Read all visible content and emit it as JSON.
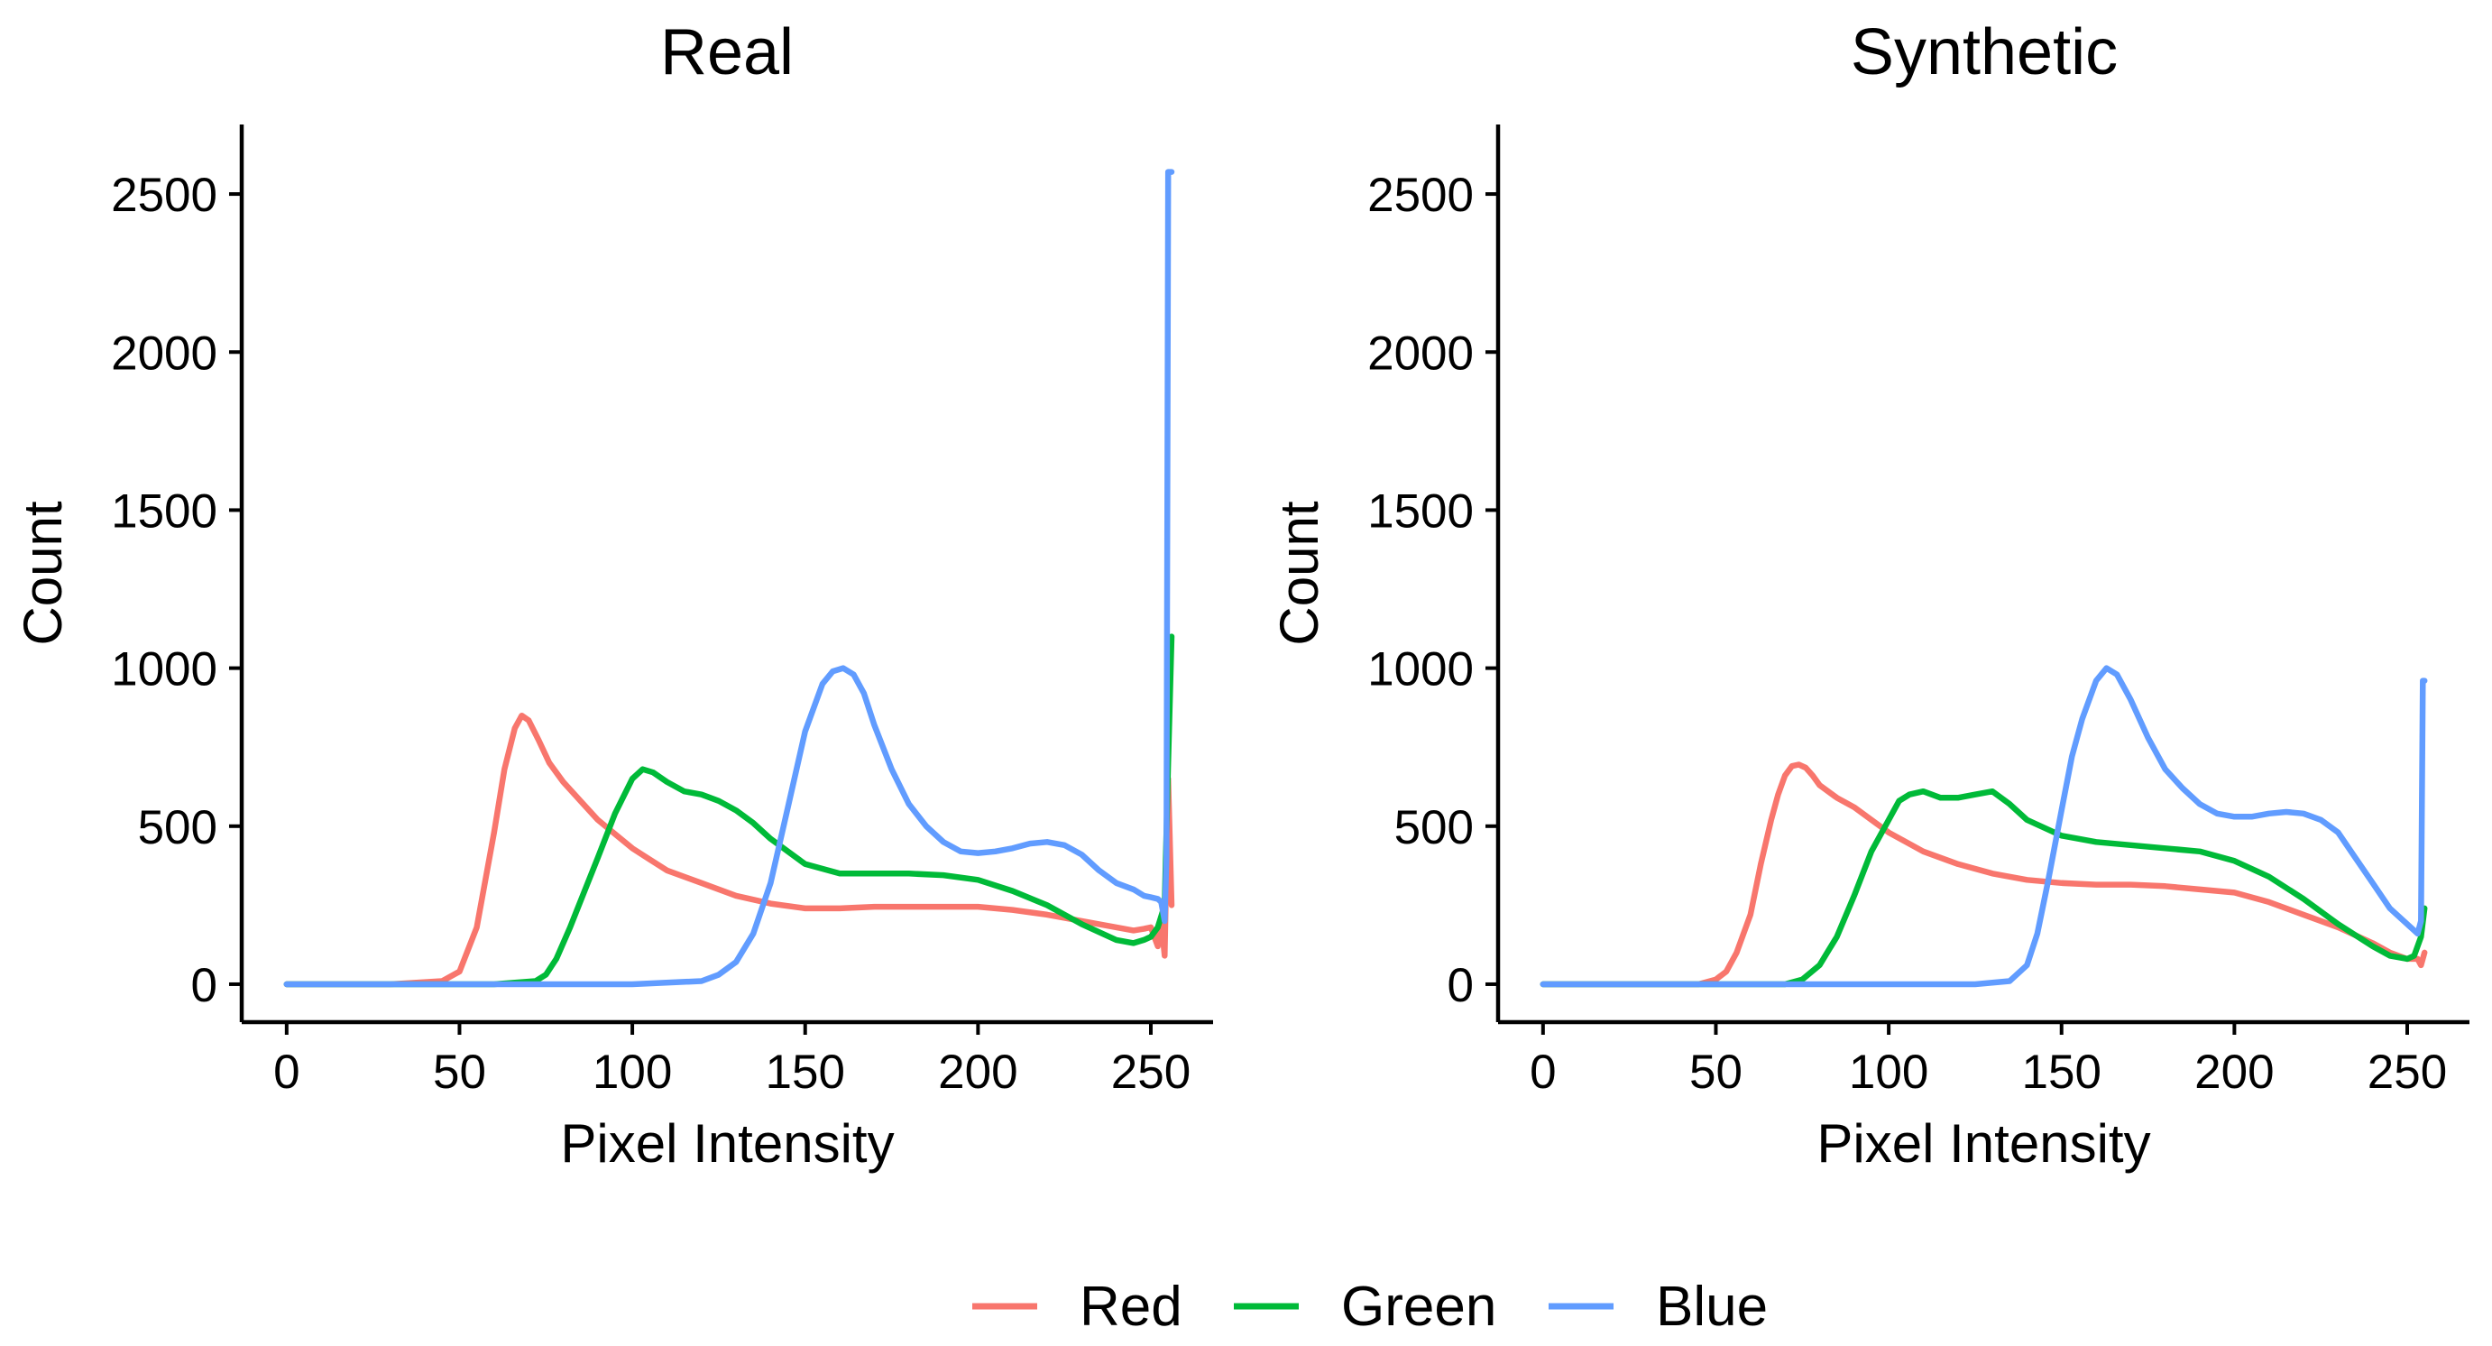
{
  "colors": {
    "red": "#F8766D",
    "green": "#00BA38",
    "blue": "#619CFF"
  },
  "legend": [
    {
      "key": "red",
      "label": "Red"
    },
    {
      "key": "green",
      "label": "Green"
    },
    {
      "key": "blue",
      "label": "Blue"
    }
  ],
  "chart_data": [
    {
      "type": "line",
      "title": "Real",
      "xlabel": "Pixel Intensity",
      "ylabel": "Count",
      "xlim": [
        -13,
        268
      ],
      "ylim": [
        -120,
        2720
      ],
      "xticks": [
        0,
        50,
        100,
        150,
        200,
        250
      ],
      "yticks": [
        0,
        500,
        1000,
        1500,
        2000,
        2500
      ],
      "grid": false,
      "legend_position": "bottom",
      "series": [
        {
          "name": "Red",
          "color_key": "red",
          "x": [
            0,
            30,
            45,
            50,
            55,
            60,
            63,
            66,
            68,
            70,
            73,
            76,
            80,
            85,
            90,
            95,
            100,
            105,
            110,
            120,
            130,
            140,
            150,
            160,
            170,
            180,
            190,
            200,
            210,
            220,
            230,
            240,
            245,
            248,
            250,
            252,
            253,
            254,
            255,
            256
          ],
          "y": [
            0,
            0,
            10,
            40,
            180,
            480,
            680,
            810,
            850,
            835,
            770,
            700,
            640,
            580,
            520,
            475,
            430,
            395,
            360,
            320,
            280,
            255,
            240,
            240,
            245,
            245,
            245,
            245,
            235,
            220,
            200,
            180,
            170,
            175,
            180,
            120,
            200,
            90,
            650,
            250
          ]
        },
        {
          "name": "Green",
          "color_key": "green",
          "x": [
            0,
            60,
            72,
            75,
            78,
            82,
            86,
            90,
            95,
            100,
            103,
            106,
            110,
            115,
            120,
            125,
            130,
            135,
            140,
            150,
            160,
            170,
            180,
            190,
            200,
            210,
            220,
            230,
            240,
            245,
            248,
            250,
            252,
            254,
            255,
            256
          ],
          "y": [
            0,
            0,
            10,
            30,
            80,
            180,
            290,
            400,
            540,
            650,
            680,
            670,
            640,
            610,
            600,
            580,
            550,
            510,
            460,
            380,
            350,
            350,
            350,
            345,
            330,
            295,
            250,
            190,
            140,
            130,
            140,
            150,
            180,
            250,
            700,
            1100
          ]
        },
        {
          "name": "Blue",
          "color_key": "blue",
          "x": [
            0,
            100,
            120,
            125,
            130,
            135,
            140,
            145,
            150,
            155,
            158,
            161,
            164,
            167,
            170,
            175,
            180,
            185,
            190,
            195,
            200,
            205,
            210,
            215,
            220,
            225,
            230,
            235,
            240,
            245,
            248,
            250,
            252,
            253,
            254,
            254.5,
            255,
            256
          ],
          "y": [
            0,
            0,
            10,
            30,
            70,
            160,
            320,
            560,
            800,
            950,
            990,
            1000,
            980,
            920,
            820,
            680,
            570,
            500,
            450,
            420,
            415,
            420,
            430,
            445,
            450,
            440,
            410,
            360,
            320,
            300,
            280,
            275,
            270,
            260,
            200,
            400,
            2570,
            2570
          ]
        }
      ]
    },
    {
      "type": "line",
      "title": "Synthetic",
      "xlabel": "Pixel Intensity",
      "ylabel": "Count",
      "xlim": [
        -13,
        268
      ],
      "ylim": [
        -120,
        2720
      ],
      "xticks": [
        0,
        50,
        100,
        150,
        200,
        250
      ],
      "yticks": [
        0,
        500,
        1000,
        1500,
        2000,
        2500
      ],
      "grid": false,
      "legend_position": "bottom",
      "series": [
        {
          "name": "Red",
          "color_key": "red",
          "x": [
            0,
            45,
            50,
            53,
            56,
            60,
            63,
            66,
            68,
            70,
            72,
            74,
            76,
            78,
            80,
            85,
            90,
            95,
            100,
            105,
            110,
            120,
            130,
            140,
            150,
            160,
            170,
            180,
            190,
            200,
            210,
            220,
            230,
            240,
            245,
            250,
            253,
            254,
            255
          ],
          "y": [
            0,
            0,
            15,
            40,
            100,
            220,
            380,
            520,
            600,
            660,
            690,
            695,
            685,
            660,
            630,
            590,
            560,
            520,
            480,
            450,
            420,
            380,
            350,
            330,
            320,
            315,
            315,
            310,
            300,
            290,
            260,
            220,
            180,
            130,
            100,
            80,
            80,
            60,
            100
          ]
        },
        {
          "name": "Green",
          "color_key": "green",
          "x": [
            0,
            70,
            75,
            80,
            85,
            90,
            95,
            100,
            103,
            106,
            110,
            115,
            120,
            125,
            130,
            135,
            140,
            150,
            160,
            170,
            180,
            190,
            200,
            210,
            220,
            230,
            240,
            245,
            250,
            252,
            254,
            255
          ],
          "y": [
            0,
            0,
            15,
            60,
            150,
            280,
            420,
            520,
            580,
            600,
            610,
            590,
            590,
            600,
            610,
            570,
            520,
            470,
            450,
            440,
            430,
            420,
            390,
            340,
            270,
            190,
            120,
            90,
            80,
            90,
            150,
            240
          ]
        },
        {
          "name": "Blue",
          "color_key": "blue",
          "x": [
            0,
            125,
            135,
            140,
            143,
            146,
            150,
            153,
            156,
            160,
            163,
            166,
            170,
            175,
            180,
            185,
            190,
            195,
            200,
            205,
            210,
            215,
            220,
            225,
            230,
            235,
            240,
            245,
            250,
            252,
            253,
            254,
            254.5,
            255
          ],
          "y": [
            0,
            0,
            10,
            60,
            160,
            320,
            550,
            720,
            840,
            960,
            1000,
            980,
            900,
            780,
            680,
            620,
            570,
            540,
            530,
            530,
            540,
            545,
            540,
            520,
            480,
            400,
            320,
            240,
            190,
            170,
            160,
            200,
            960,
            960
          ]
        }
      ]
    }
  ]
}
